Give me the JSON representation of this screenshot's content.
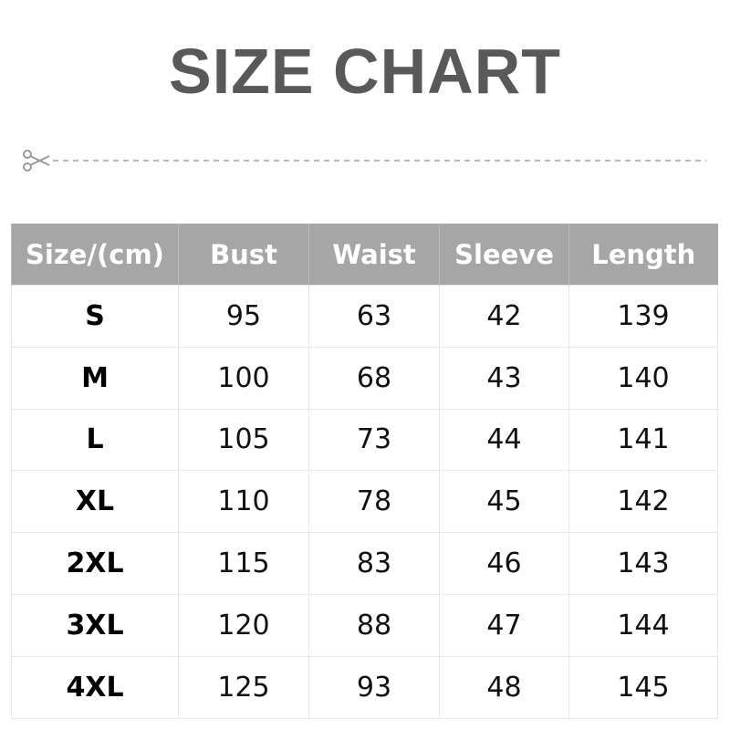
{
  "title": "SIZE CHART",
  "cut_line_icon": "scissors-icon",
  "header_color": "#a6a6a6",
  "title_color": "#595959",
  "table": {
    "headers": [
      "Size/(cm)",
      "Bust",
      "Waist",
      "Sleeve",
      "Length"
    ],
    "rows": [
      [
        "S",
        "95",
        "63",
        "42",
        "139"
      ],
      [
        "M",
        "100",
        "68",
        "43",
        "140"
      ],
      [
        "L",
        "105",
        "73",
        "44",
        "141"
      ],
      [
        "XL",
        "110",
        "78",
        "45",
        "142"
      ],
      [
        "2XL",
        "115",
        "83",
        "46",
        "143"
      ],
      [
        "3XL",
        "120",
        "88",
        "47",
        "144"
      ],
      [
        "4XL",
        "125",
        "93",
        "48",
        "145"
      ]
    ]
  }
}
